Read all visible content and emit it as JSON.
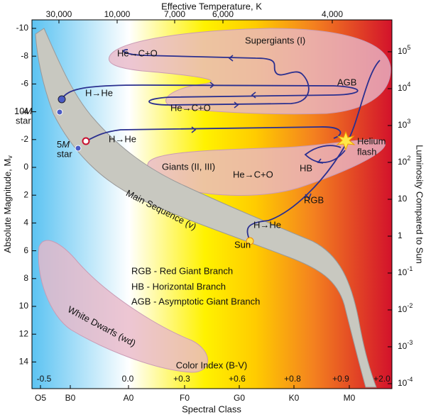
{
  "top_axis": {
    "title": "Effective Temperature, K",
    "ticks": [
      "30,000",
      "10,000",
      "7,000",
      "6,000",
      "4,000"
    ]
  },
  "left_axis": {
    "title": "Absolute Magnitude, M",
    "title_subscript": "v",
    "ticks": [
      "-10",
      "-8",
      "-6",
      "-4",
      "-2",
      "0",
      "2",
      "4",
      "6",
      "8",
      "10",
      "12",
      "14"
    ]
  },
  "right_axis": {
    "title": "Luminosity Compared to Sun",
    "ticks": [
      {
        "base": "10",
        "exp": "5"
      },
      {
        "base": "10",
        "exp": "4"
      },
      {
        "base": "10",
        "exp": "3"
      },
      {
        "base": "10",
        "exp": "2"
      },
      {
        "base": "10"
      },
      {
        "base": "1"
      },
      {
        "base": "10",
        "exp": "-1"
      },
      {
        "base": "10",
        "exp": "-2"
      },
      {
        "base": "10",
        "exp": "-3"
      },
      {
        "base": "10",
        "exp": "-4"
      }
    ]
  },
  "bottom_axis": {
    "title": "Spectral Class",
    "ticks": [
      "O5",
      "B0",
      "A0",
      "F0",
      "G0",
      "K0",
      "M0"
    ]
  },
  "color_index": {
    "title": "Color Index (B-V)",
    "ticks": [
      "-0.5",
      "0.0",
      "+0.3",
      "+0.6",
      "+0.8",
      "+0.9",
      "+2.0"
    ]
  },
  "regions": {
    "supergiants": "Supergiants (I)",
    "giants": "Giants (II, III)",
    "main_sequence": "Main Sequence (v)",
    "white_dwarfs": "White Dwarfs (wd)"
  },
  "annotations": [
    "He→C+O",
    "H→He",
    "He→C+O",
    "AGB",
    "Helium",
    "flash",
    "HB",
    "He→C+O",
    "RGB",
    "H→He",
    "Sun",
    "H→He"
  ],
  "stars": [
    {
      "mass": "10",
      "unit": "M",
      "label": "star"
    },
    {
      "mass": "5",
      "unit": "M",
      "label": "star"
    }
  ],
  "legend": [
    "RGB - Red Giant Branch",
    "HB - Horizontal Branch",
    "AGB - Asymptotic Giant Branch"
  ]
}
